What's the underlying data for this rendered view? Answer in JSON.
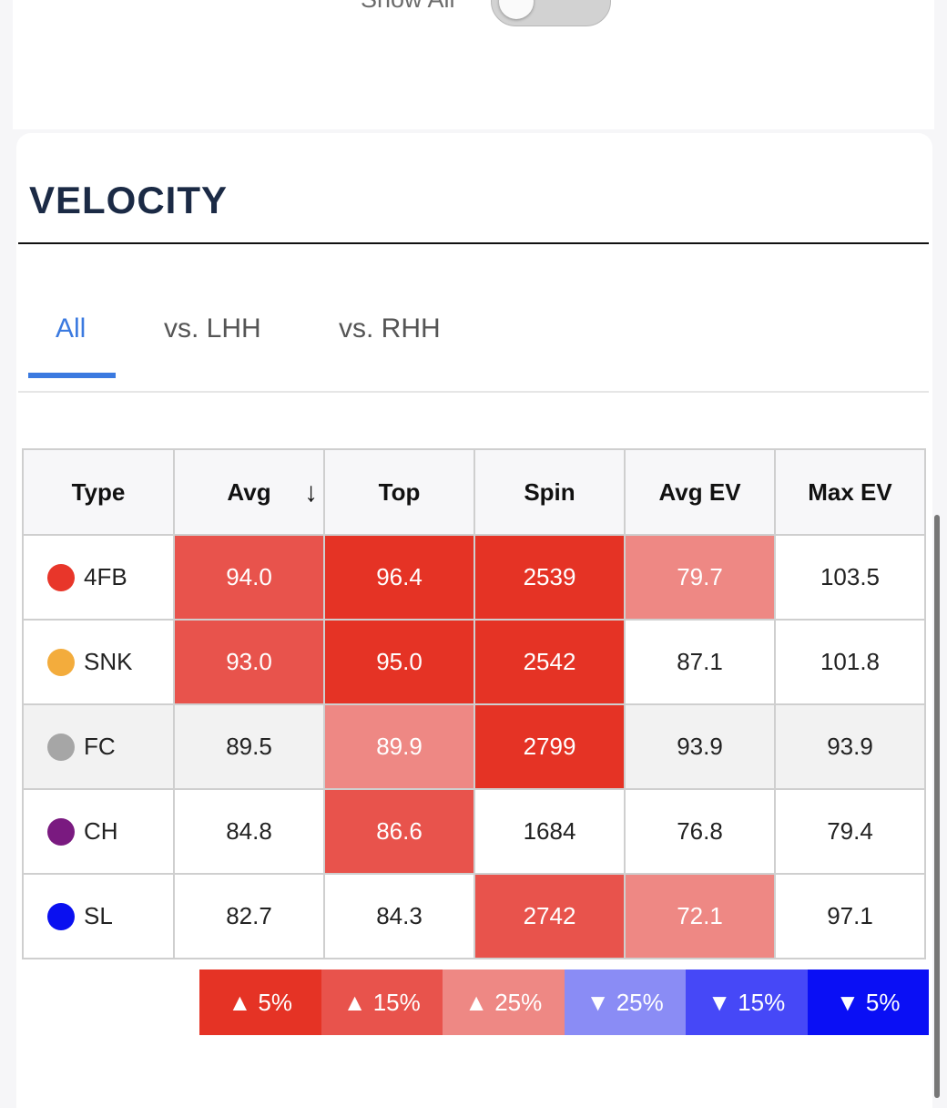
{
  "top": {
    "show_all_label": "Show All",
    "show_all_on": false
  },
  "section": {
    "title": "VELOCITY"
  },
  "tabs": [
    {
      "label": "All",
      "active": true
    },
    {
      "label": "vs. LHH",
      "active": false
    },
    {
      "label": "vs. RHH",
      "active": false
    }
  ],
  "table": {
    "headers": [
      "Type",
      "Avg",
      "Top",
      "Spin",
      "Avg EV",
      "Max EV"
    ],
    "sort_column": "Avg",
    "sort_icon": "↓",
    "rows": [
      {
        "type": "4FB",
        "dot_color": "#e8362a",
        "shaded": false,
        "cells": [
          {
            "v": "94.0",
            "bg": "#e8534c"
          },
          {
            "v": "96.4",
            "bg": "#e53325"
          },
          {
            "v": "2539",
            "bg": "#e53325"
          },
          {
            "v": "79.7",
            "bg": "#ee8884"
          },
          {
            "v": "103.5",
            "bg": ""
          }
        ]
      },
      {
        "type": "SNK",
        "dot_color": "#f3ac3c",
        "shaded": false,
        "cells": [
          {
            "v": "93.0",
            "bg": "#e8534c"
          },
          {
            "v": "95.0",
            "bg": "#e53325"
          },
          {
            "v": "2542",
            "bg": "#e53325"
          },
          {
            "v": "87.1",
            "bg": ""
          },
          {
            "v": "101.8",
            "bg": ""
          }
        ]
      },
      {
        "type": "FC",
        "dot_color": "#a6a6a6",
        "shaded": true,
        "cells": [
          {
            "v": "89.5",
            "bg": ""
          },
          {
            "v": "89.9",
            "bg": "#ee8884"
          },
          {
            "v": "2799",
            "bg": "#e53325"
          },
          {
            "v": "93.9",
            "bg": ""
          },
          {
            "v": "93.9",
            "bg": ""
          }
        ]
      },
      {
        "type": "CH",
        "dot_color": "#7a1a80",
        "shaded": false,
        "cells": [
          {
            "v": "84.8",
            "bg": ""
          },
          {
            "v": "86.6",
            "bg": "#e8534c"
          },
          {
            "v": "1684",
            "bg": ""
          },
          {
            "v": "76.8",
            "bg": ""
          },
          {
            "v": "79.4",
            "bg": ""
          }
        ]
      },
      {
        "type": "SL",
        "dot_color": "#0a10f0",
        "shaded": false,
        "cells": [
          {
            "v": "82.7",
            "bg": ""
          },
          {
            "v": "84.3",
            "bg": ""
          },
          {
            "v": "2742",
            "bg": "#e8534c"
          },
          {
            "v": "72.1",
            "bg": "#ee8884"
          },
          {
            "v": "97.1",
            "bg": ""
          }
        ]
      }
    ]
  },
  "legend": [
    {
      "label": "▲ 5%",
      "color": "#e53325"
    },
    {
      "label": "▲ 15%",
      "color": "#e8534c"
    },
    {
      "label": "▲ 25%",
      "color": "#ee8884"
    },
    {
      "label": "▼ 25%",
      "color": "#8a8cf5"
    },
    {
      "label": "▼ 15%",
      "color": "#4648f7"
    },
    {
      "label": "▼ 5%",
      "color": "#0a0ff5"
    }
  ]
}
